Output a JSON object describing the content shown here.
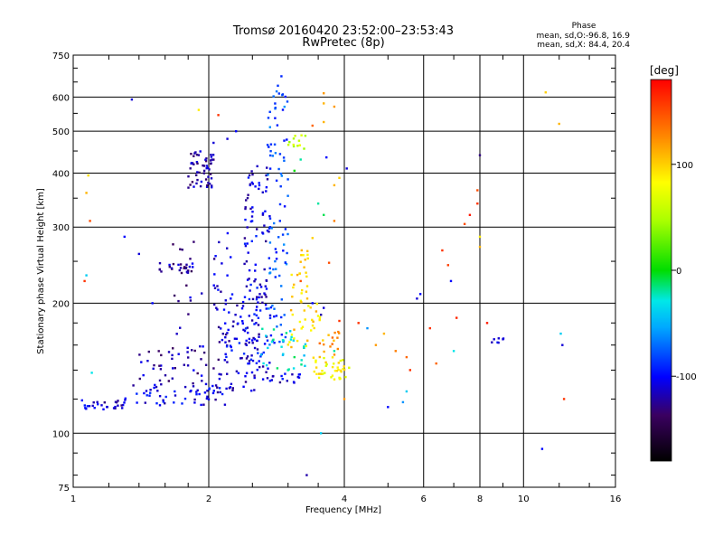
{
  "header": {
    "title_line1": "Tromsø 20160420 23:52:00–23:53:43",
    "title_line2": "RwPretec (8p)"
  },
  "phase_panel": {
    "title": "Phase",
    "o_label": "mean, sd,O:",
    "o_values": "-96.8, 16.9",
    "x_label": "mean, sd,X:",
    "x_values": "84.4, 20.4"
  },
  "colorbar": {
    "unit_label": "[deg]",
    "min": -180,
    "max": 180,
    "tick_values": [
      100,
      0,
      -100
    ],
    "tick_labels": [
      "100",
      "0",
      "-100"
    ]
  },
  "chart_data": {
    "type": "scatter",
    "title": "Tromsø 20160420 23:52:00–23:53:43",
    "subtitle": "RwPretec (8p)",
    "xlabel": "Frequency [MHz]",
    "ylabel": "Stationary phase Virtual Height [km]",
    "x_scale": "log",
    "y_scale": "log",
    "xlim": [
      1,
      16
    ],
    "ylim": [
      75,
      750
    ],
    "x_ticks": [
      1,
      2,
      4,
      6,
      8,
      10,
      16
    ],
    "x_tick_labels": [
      "1",
      "2",
      "4",
      "6",
      "8",
      "10",
      "16"
    ],
    "y_ticks": [
      75,
      100,
      200,
      300,
      400,
      500,
      600,
      750
    ],
    "y_tick_labels": [
      "75",
      "100",
      "200",
      "300",
      "400",
      "500",
      "600",
      "750"
    ],
    "grid": true,
    "color_dimension": "phase [deg]",
    "clusters": [
      {
        "x_range": [
          1.0,
          1.3
        ],
        "y_range": [
          113,
          120
        ],
        "count": 28,
        "phase": -110
      },
      {
        "x_range": [
          1.3,
          2.2
        ],
        "y_range": [
          116,
          130
        ],
        "count": 55,
        "phase": -108
      },
      {
        "x_range": [
          2.0,
          3.2
        ],
        "y_range": [
          125,
          140
        ],
        "count": 40,
        "phase": -110
      },
      {
        "x_range": [
          1.4,
          2.0
        ],
        "y_range": [
          130,
          160
        ],
        "count": 35,
        "phase": -120
      },
      {
        "x_range": [
          1.55,
          1.85
        ],
        "y_range": [
          235,
          248
        ],
        "count": 22,
        "phase": -120
      },
      {
        "x_range": [
          1.8,
          2.05
        ],
        "y_range": [
          370,
          450
        ],
        "count": 55,
        "phase": -125
      },
      {
        "x_range": [
          1.65,
          1.95
        ],
        "y_range": [
          140,
          300
        ],
        "count": 25,
        "phase": -118
      },
      {
        "x_range": [
          2.05,
          2.25
        ],
        "y_range": [
          140,
          300
        ],
        "count": 30,
        "phase": -115
      },
      {
        "x_range": [
          2.15,
          2.6
        ],
        "y_range": [
          135,
          210
        ],
        "count": 70,
        "phase": -105
      },
      {
        "x_range": [
          2.4,
          2.75
        ],
        "y_range": [
          140,
          420
        ],
        "count": 110,
        "phase": -108
      },
      {
        "x_range": [
          2.7,
          3.0
        ],
        "y_range": [
          160,
          650
        ],
        "count": 90,
        "phase": -80
      },
      {
        "x_range": [
          2.6,
          3.3
        ],
        "y_range": [
          140,
          175
        ],
        "count": 30,
        "phase": -30
      },
      {
        "x_range": [
          3.0,
          3.3
        ],
        "y_range": [
          455,
          490
        ],
        "count": 12,
        "phase": 60
      },
      {
        "x_range": [
          3.05,
          3.35
        ],
        "y_range": [
          200,
          270
        ],
        "count": 25,
        "phase": 95
      },
      {
        "x_range": [
          3.0,
          3.6
        ],
        "y_range": [
          155,
          200
        ],
        "count": 30,
        "phase": 95
      },
      {
        "x_range": [
          3.4,
          4.1
        ],
        "y_range": [
          133,
          150
        ],
        "count": 40,
        "phase": 85
      },
      {
        "x_range": [
          3.5,
          4.0
        ],
        "y_range": [
          150,
          172
        ],
        "count": 15,
        "phase": 120
      },
      {
        "x_range": [
          8.5,
          9.2
        ],
        "y_range": [
          162,
          166
        ],
        "count": 4,
        "phase": -110
      }
    ],
    "points": [
      [
        1.07,
        360,
        110
      ],
      [
        1.08,
        395,
        95
      ],
      [
        1.09,
        310,
        150
      ],
      [
        1.07,
        232,
        -40
      ],
      [
        1.06,
        225,
        160
      ],
      [
        1.1,
        138,
        -30
      ],
      [
        1.35,
        592,
        -110
      ],
      [
        1.3,
        285,
        -100
      ],
      [
        1.4,
        260,
        -110
      ],
      [
        1.5,
        200,
        -100
      ],
      [
        1.9,
        560,
        90
      ],
      [
        2.1,
        545,
        160
      ],
      [
        2.05,
        470,
        -110
      ],
      [
        3.6,
        612,
        120
      ],
      [
        3.6,
        580,
        110
      ],
      [
        3.8,
        570,
        120
      ],
      [
        3.4,
        515,
        140
      ],
      [
        3.6,
        525,
        110
      ],
      [
        3.65,
        435,
        -100
      ],
      [
        3.8,
        375,
        110
      ],
      [
        3.9,
        390,
        100
      ],
      [
        4.05,
        410,
        -110
      ],
      [
        3.5,
        340,
        -20
      ],
      [
        3.6,
        320,
        -10
      ],
      [
        3.4,
        283,
        100
      ],
      [
        3.7,
        248,
        150
      ],
      [
        3.8,
        310,
        130
      ],
      [
        3.4,
        200,
        -100
      ],
      [
        3.6,
        195,
        -110
      ],
      [
        3.9,
        182,
        160
      ],
      [
        3.55,
        188,
        -120
      ],
      [
        4.0,
        120,
        120
      ],
      [
        3.2,
        225,
        150
      ],
      [
        4.3,
        180,
        160
      ],
      [
        4.5,
        175,
        -60
      ],
      [
        4.7,
        160,
        120
      ],
      [
        4.9,
        170,
        110
      ],
      [
        5.2,
        155,
        130
      ],
      [
        5.5,
        150,
        140
      ],
      [
        5.6,
        140,
        160
      ],
      [
        5.0,
        115,
        -100
      ],
      [
        5.5,
        125,
        -40
      ],
      [
        5.4,
        118,
        -60
      ],
      [
        5.8,
        205,
        -110
      ],
      [
        5.9,
        210,
        -100
      ],
      [
        6.2,
        175,
        160
      ],
      [
        6.4,
        145,
        140
      ],
      [
        6.6,
        265,
        160
      ],
      [
        6.8,
        245,
        155
      ],
      [
        6.9,
        225,
        -100
      ],
      [
        7.1,
        185,
        165
      ],
      [
        7.0,
        155,
        -30
      ],
      [
        7.4,
        305,
        150
      ],
      [
        7.6,
        320,
        170
      ],
      [
        7.9,
        340,
        160
      ],
      [
        7.9,
        365,
        150
      ],
      [
        8.0,
        285,
        90
      ],
      [
        8.0,
        270,
        110
      ],
      [
        8.0,
        440,
        -130
      ],
      [
        8.3,
        180,
        170
      ],
      [
        8.6,
        165,
        -110
      ],
      [
        8.8,
        162,
        -110
      ],
      [
        9.0,
        165,
        -110
      ],
      [
        11.0,
        92,
        -100
      ],
      [
        11.2,
        615,
        100
      ],
      [
        12.0,
        520,
        110
      ],
      [
        12.1,
        170,
        -40
      ],
      [
        12.2,
        160,
        -110
      ],
      [
        12.3,
        120,
        160
      ],
      [
        3.3,
        80,
        -120
      ],
      [
        3.6,
        75,
        160
      ],
      [
        3.55,
        100,
        -40
      ],
      [
        3.8,
        155,
        -20
      ],
      [
        3.2,
        430,
        -20
      ],
      [
        3.1,
        405,
        0
      ],
      [
        2.3,
        500,
        -100
      ],
      [
        2.2,
        480,
        -110
      ],
      [
        2.9,
        670,
        -90
      ],
      [
        3.0,
        140,
        -20
      ],
      [
        3.1,
        150,
        -10
      ]
    ]
  }
}
